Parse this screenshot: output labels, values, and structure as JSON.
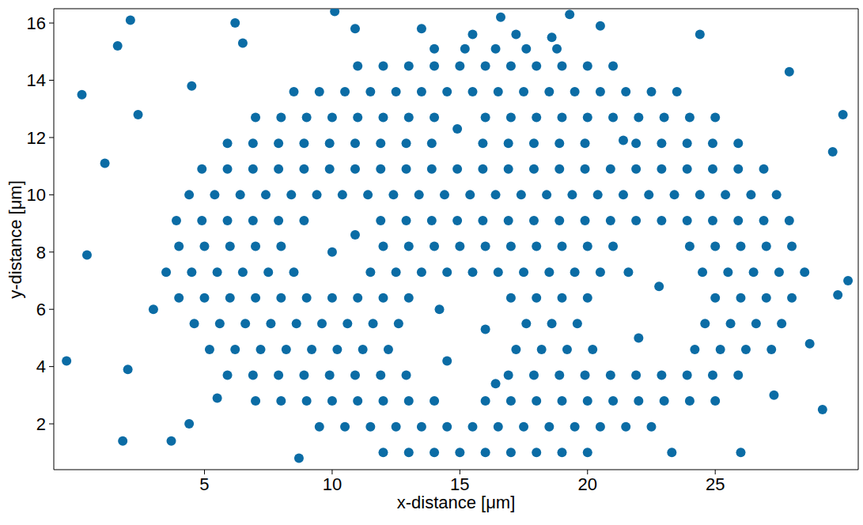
{
  "chart_data": {
    "type": "scatter",
    "x_label": "x-distance [μm]",
    "y_label": "y-distance [μm]",
    "color": "#0b6ca5",
    "marker": "circle",
    "grid": false,
    "xlim": [
      -0.9,
      30.6
    ],
    "ylim": [
      0.4,
      16.5
    ],
    "xticks": [
      5,
      10,
      15,
      20,
      25
    ],
    "yticks": [
      2,
      4,
      6,
      8,
      10,
      12,
      14,
      16
    ],
    "x": [
      12,
      13,
      14,
      15,
      16,
      17,
      18,
      19,
      20,
      9.5,
      10.5,
      11.5,
      12.5,
      13.5,
      14.5,
      15.5,
      16.5,
      17.5,
      18.5,
      19.5,
      20.5,
      21.5,
      22.5,
      7,
      8,
      9,
      10,
      11,
      12,
      13,
      14,
      16,
      17,
      18,
      19,
      20,
      21,
      22,
      23,
      24,
      25,
      5.9,
      6.9,
      7.9,
      8.9,
      9.9,
      10.9,
      11.9,
      12.9,
      16.9,
      17.9,
      18.9,
      19.9,
      20.9,
      21.9,
      22.9,
      23.9,
      24.9,
      25.9,
      5.2,
      6.2,
      7.2,
      8.2,
      9.2,
      10.2,
      11.2,
      12.2,
      17.2,
      18.2,
      19.2,
      20.2,
      24.2,
      25.2,
      26.2,
      27.2,
      4.6,
      5.6,
      6.6,
      7.6,
      8.6,
      9.6,
      10.6,
      11.6,
      12.6,
      17.6,
      18.6,
      19.6,
      24.6,
      25.6,
      26.6,
      27.6,
      4,
      5,
      6,
      7,
      8,
      9,
      10,
      11,
      12,
      13,
      17,
      18,
      19,
      20,
      25,
      26,
      27,
      28,
      3.5,
      4.5,
      5.5,
      6.5,
      7.5,
      8.5,
      11.5,
      12.5,
      13.5,
      14.5,
      15.5,
      16.5,
      17.5,
      18.5,
      19.5,
      20.5,
      24.5,
      25.5,
      26.5,
      27.5,
      28.5,
      4,
      5,
      6,
      7,
      8,
      12,
      13,
      14,
      15,
      16,
      17,
      18,
      19,
      20,
      21,
      24,
      25,
      26,
      27,
      28,
      3.9,
      4.9,
      5.9,
      6.9,
      7.9,
      8.9,
      11.9,
      12.9,
      13.9,
      14.9,
      15.9,
      16.9,
      17.9,
      18.9,
      19.9,
      20.9,
      21.9,
      22.9,
      23.9,
      24.9,
      25.9,
      26.9,
      27.9,
      4.4,
      5.4,
      6.4,
      7.4,
      8.4,
      9.4,
      10.4,
      11.4,
      12.4,
      13.4,
      14.4,
      15.4,
      16.4,
      17.4,
      18.4,
      19.4,
      20.4,
      21.4,
      22.4,
      23.4,
      24.4,
      25.4,
      26.4,
      27.4,
      4.9,
      5.9,
      6.9,
      7.9,
      8.9,
      9.9,
      10.9,
      11.9,
      12.9,
      13.9,
      14.9,
      15.9,
      16.9,
      17.9,
      18.9,
      19.9,
      20.9,
      21.9,
      22.9,
      23.9,
      24.9,
      25.9,
      26.9,
      5.9,
      6.9,
      7.9,
      8.9,
      9.9,
      10.9,
      11.9,
      12.9,
      13.9,
      15.9,
      16.9,
      17.9,
      18.9,
      19.9,
      21.9,
      22.9,
      23.9,
      24.9,
      25.9,
      7,
      8,
      9,
      10,
      11,
      12,
      13,
      14,
      16,
      17,
      18,
      19,
      20,
      21,
      22,
      23,
      24,
      25,
      8.5,
      9.5,
      10.5,
      11.5,
      12.5,
      13.5,
      14.5,
      15.5,
      16.5,
      17.5,
      18.5,
      19.5,
      20.5,
      21.5,
      22.5,
      23.5,
      11,
      12,
      13,
      14,
      15,
      16,
      17,
      18,
      19,
      20,
      21,
      14,
      15.2,
      16.4,
      17.6,
      18.8,
      10.0,
      10.9,
      14.5,
      16.0,
      14.2,
      16.4,
      22.0,
      22.8,
      21.6,
      14.9,
      21.4,
      0.4,
      1.6,
      2.1,
      1.1,
      2.4,
      3.0,
      2.0,
      4.4,
      5.5,
      1.8,
      6.5,
      10.1,
      16.6,
      20.5,
      24.4,
      27.9,
      29.6,
      29.8,
      29.2,
      26.0,
      23.3,
      8.7,
      3.7,
      10.9,
      27.3,
      28.7,
      4.5,
      6.2,
      13.5,
      19.3,
      -0.4,
      0.2,
      30.2,
      30.0,
      15.5,
      17.2,
      18.6
    ],
    "values": [
      1,
      1,
      1,
      1,
      1,
      1,
      1,
      1,
      1,
      1.9,
      1.9,
      1.9,
      1.9,
      1.9,
      1.9,
      1.9,
      1.9,
      1.9,
      1.9,
      1.9,
      1.9,
      1.9,
      1.9,
      2.8,
      2.8,
      2.8,
      2.8,
      2.8,
      2.8,
      2.8,
      2.8,
      2.8,
      2.8,
      2.8,
      2.8,
      2.8,
      2.8,
      2.8,
      2.8,
      2.8,
      2.8,
      3.7,
      3.7,
      3.7,
      3.7,
      3.7,
      3.7,
      3.7,
      3.7,
      3.7,
      3.7,
      3.7,
      3.7,
      3.7,
      3.7,
      3.7,
      3.7,
      3.7,
      3.7,
      4.6,
      4.6,
      4.6,
      4.6,
      4.6,
      4.6,
      4.6,
      4.6,
      4.6,
      4.6,
      4.6,
      4.6,
      4.6,
      4.6,
      4.6,
      4.6,
      5.5,
      5.5,
      5.5,
      5.5,
      5.5,
      5.5,
      5.5,
      5.5,
      5.5,
      5.5,
      5.5,
      5.5,
      5.5,
      5.5,
      5.5,
      5.5,
      6.4,
      6.4,
      6.4,
      6.4,
      6.4,
      6.4,
      6.4,
      6.4,
      6.4,
      6.4,
      6.4,
      6.4,
      6.4,
      6.4,
      6.4,
      6.4,
      6.4,
      6.4,
      7.3,
      7.3,
      7.3,
      7.3,
      7.3,
      7.3,
      7.3,
      7.3,
      7.3,
      7.3,
      7.3,
      7.3,
      7.3,
      7.3,
      7.3,
      7.3,
      7.3,
      7.3,
      7.3,
      7.3,
      7.3,
      8.2,
      8.2,
      8.2,
      8.2,
      8.2,
      8.2,
      8.2,
      8.2,
      8.2,
      8.2,
      8.2,
      8.2,
      8.2,
      8.2,
      8.2,
      8.2,
      8.2,
      8.2,
      8.2,
      8.2,
      9.1,
      9.1,
      9.1,
      9.1,
      9.1,
      9.1,
      9.1,
      9.1,
      9.1,
      9.1,
      9.1,
      9.1,
      9.1,
      9.1,
      9.1,
      9.1,
      9.1,
      9.1,
      9.1,
      9.1,
      9.1,
      9.1,
      9.1,
      10,
      10,
      10,
      10,
      10,
      10,
      10,
      10,
      10,
      10,
      10,
      10,
      10,
      10,
      10,
      10,
      10,
      10,
      10,
      10,
      10,
      10,
      10,
      10,
      10.9,
      10.9,
      10.9,
      10.9,
      10.9,
      10.9,
      10.9,
      10.9,
      10.9,
      10.9,
      10.9,
      10.9,
      10.9,
      10.9,
      10.9,
      10.9,
      10.9,
      10.9,
      10.9,
      10.9,
      10.9,
      10.9,
      10.9,
      11.8,
      11.8,
      11.8,
      11.8,
      11.8,
      11.8,
      11.8,
      11.8,
      11.8,
      11.8,
      11.8,
      11.8,
      11.8,
      11.8,
      11.8,
      11.8,
      11.8,
      11.8,
      11.8,
      12.7,
      12.7,
      12.7,
      12.7,
      12.7,
      12.7,
      12.7,
      12.7,
      12.7,
      12.7,
      12.7,
      12.7,
      12.7,
      12.7,
      12.7,
      12.7,
      12.7,
      12.7,
      13.6,
      13.6,
      13.6,
      13.6,
      13.6,
      13.6,
      13.6,
      13.6,
      13.6,
      13.6,
      13.6,
      13.6,
      13.6,
      13.6,
      13.6,
      13.6,
      14.5,
      14.5,
      14.5,
      14.5,
      14.5,
      14.5,
      14.5,
      14.5,
      14.5,
      14.5,
      14.5,
      15.1,
      15.1,
      15.1,
      15.1,
      15.1,
      8.0,
      8.6,
      4.2,
      5.3,
      6.0,
      3.4,
      5.0,
      6.8,
      7.3,
      12.3,
      11.9,
      7.9,
      15.2,
      16.1,
      11.1,
      12.8,
      6.0,
      3.9,
      2.0,
      2.9,
      1.4,
      15.3,
      16.4,
      16.2,
      15.9,
      15.6,
      14.3,
      11.5,
      6.5,
      2.5,
      1.0,
      1.0,
      0.8,
      1.4,
      15.8,
      3.0,
      4.8,
      13.8,
      16.0,
      15.8,
      16.3,
      4.2,
      13.5,
      7.0,
      12.8,
      15.6,
      15.6,
      15.5
    ]
  }
}
